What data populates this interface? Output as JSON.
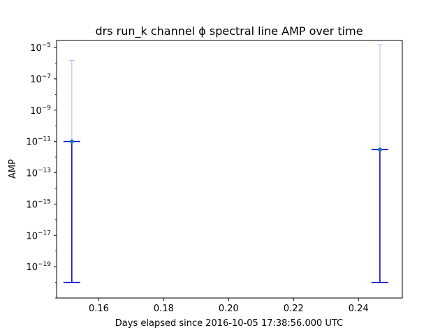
{
  "chart_data": {
    "type": "scatter",
    "title": "drs run_k channel ϕ spectral line AMP over time",
    "xlabel": "Days elapsed since 2016-10-05 17:38:56.000 UTC",
    "ylabel": "AMP",
    "y_scale": "log",
    "xlim": [
      0.147,
      0.2535
    ],
    "ylim_log10": [
      -21.0,
      -4.55
    ],
    "x_ticks": [
      {
        "value": 0.16,
        "label": "0.16"
      },
      {
        "value": 0.18,
        "label": "0.18"
      },
      {
        "value": 0.2,
        "label": "0.20"
      },
      {
        "value": 0.22,
        "label": "0.22"
      },
      {
        "value": 0.24,
        "label": "0.24"
      }
    ],
    "y_ticks": [
      {
        "exp": -19,
        "base": "10",
        "sup": "−19"
      },
      {
        "exp": -17,
        "base": "10",
        "sup": "−17"
      },
      {
        "exp": -15,
        "base": "10",
        "sup": "−15"
      },
      {
        "exp": -13,
        "base": "10",
        "sup": "−13"
      },
      {
        "exp": -11,
        "base": "10",
        "sup": "−11"
      },
      {
        "exp": -9,
        "base": "10",
        "sup": "−9"
      },
      {
        "exp": -7,
        "base": "10",
        "sup": "−7"
      },
      {
        "exp": -5,
        "base": "10",
        "sup": "−5"
      }
    ],
    "points": [
      {
        "x": 0.1517,
        "y": 1e-11,
        "y_low": 1e-20,
        "y_high": 1e-11,
        "upper_envelope": 1.5e-06
      },
      {
        "x": 0.2466,
        "y": 3e-12,
        "y_low": 1e-20,
        "y_high": 3e-12,
        "upper_envelope": 1.5e-05
      }
    ],
    "colors": {
      "marker": "#1f77b4",
      "errorbar": "#0000cc",
      "envelope": "#b3b3ff"
    },
    "grid": false,
    "legend": "none"
  }
}
